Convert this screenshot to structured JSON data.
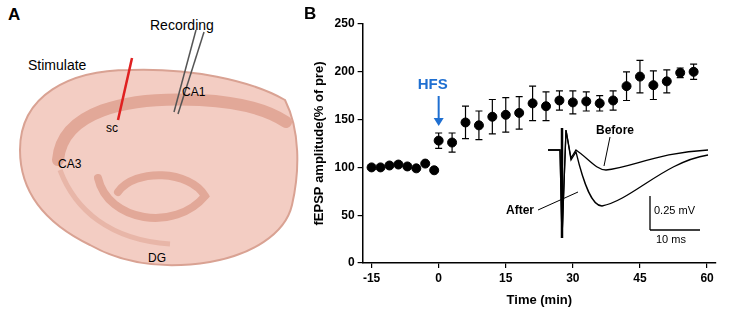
{
  "chart_data": {
    "type": "scatter",
    "panel_label": "B",
    "x_label": "Time (min)",
    "y_label": "fEPSP amplitude(% of pre)",
    "x": [
      -15,
      -13,
      -11,
      -9,
      -7,
      -5,
      -3,
      -1,
      0,
      3,
      6,
      9,
      12,
      15,
      18,
      21,
      24,
      27,
      30,
      33,
      36,
      39,
      42,
      45,
      48,
      51,
      54,
      57
    ],
    "values": [
      100,
      100,
      102,
      103,
      101,
      99,
      104,
      97,
      128,
      126,
      147,
      144,
      153,
      155,
      157,
      167,
      164,
      170,
      168,
      169,
      167,
      170,
      185,
      195,
      186,
      190,
      199,
      200
    ],
    "errors": [
      2,
      2,
      2,
      2,
      2,
      2,
      2,
      2,
      8,
      10,
      17,
      15,
      18,
      18,
      17,
      18,
      15,
      10,
      12,
      10,
      8,
      10,
      15,
      17,
      15,
      12,
      5,
      8
    ],
    "color": "#000000",
    "marker": "circle",
    "xlim": [
      -17,
      62
    ],
    "xticks": [
      -15,
      0,
      15,
      30,
      45,
      60
    ],
    "ylim": [
      0,
      250
    ],
    "yticks": [
      0,
      50,
      100,
      150,
      200,
      250
    ],
    "grid": false,
    "annotations": [
      {
        "text": "HFS",
        "x": 0,
        "color": "#1f6fd1"
      }
    ],
    "inset": {
      "traces": [
        "Before",
        "After"
      ],
      "scale_bars": [
        "0.25 mV",
        "10 ms"
      ]
    }
  },
  "diagram": {
    "panel_label": "A",
    "labels": [
      "Stimulate",
      "Recording",
      "CA1",
      "sc",
      "CA3",
      "DG"
    ]
  }
}
